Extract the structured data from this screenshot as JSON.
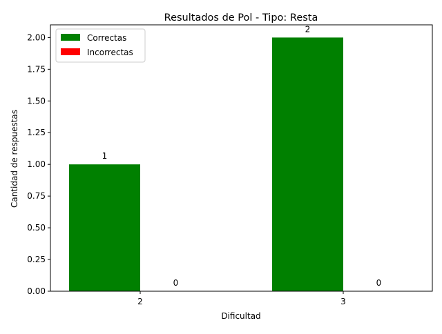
{
  "chart_data": {
    "type": "bar",
    "title": "Resultados de Pol - Tipo: Resta",
    "xlabel": "Dificultad",
    "ylabel": "Cantidad de respuestas",
    "categories": [
      "2",
      "3"
    ],
    "series": [
      {
        "name": "Correctas",
        "values": [
          1,
          2
        ],
        "color": "#008000"
      },
      {
        "name": "Incorrectas",
        "values": [
          0,
          0
        ],
        "color": "#ff0000"
      }
    ],
    "ylim": [
      0,
      2.1
    ],
    "yticks": [
      0,
      0.25,
      0.5,
      0.75,
      1.0,
      1.25,
      1.5,
      1.75,
      2.0
    ],
    "ytick_labels": [
      "0.00",
      "0.25",
      "0.50",
      "0.75",
      "1.00",
      "1.25",
      "1.50",
      "1.75",
      "2.00"
    ],
    "data_labels": true,
    "legend_position": "upper-left",
    "grid": false
  }
}
